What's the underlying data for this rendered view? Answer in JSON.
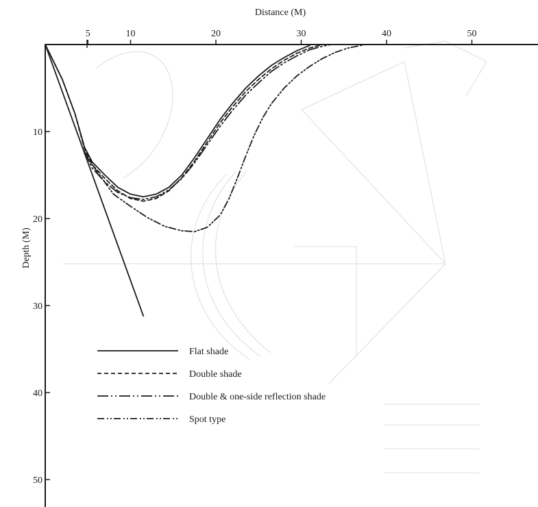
{
  "chart_data": {
    "type": "line",
    "title": "",
    "xlabel": "Distance (M)",
    "ylabel": "Depth (M)",
    "x_axis_position": "top",
    "y_axis_inverted": true,
    "xlim": [
      0,
      58
    ],
    "ylim": [
      0,
      55
    ],
    "xticks": [
      5,
      10,
      20,
      30,
      40,
      50
    ],
    "yticks": [
      10,
      20,
      30,
      40,
      50
    ],
    "grid": false,
    "legend_position": "bottom-left",
    "series": [
      {
        "name": "Flat shade",
        "style": "solid",
        "points": [
          [
            0,
            0
          ],
          [
            2,
            4
          ],
          [
            3.5,
            8
          ],
          [
            4.6,
            11.8
          ],
          [
            5.5,
            13.5
          ],
          [
            7,
            15
          ],
          [
            8.5,
            16.4
          ],
          [
            10,
            17.2
          ],
          [
            11.5,
            17.5
          ],
          [
            13,
            17.2
          ],
          [
            14.5,
            16.4
          ],
          [
            16,
            15
          ],
          [
            17.5,
            13
          ],
          [
            19,
            10.8
          ],
          [
            20.5,
            8.6
          ],
          [
            22,
            6.7
          ],
          [
            23.5,
            5
          ],
          [
            25,
            3.6
          ],
          [
            26.5,
            2.4
          ],
          [
            28,
            1.5
          ],
          [
            29.5,
            0.7
          ],
          [
            31,
            0.1
          ]
        ]
      },
      {
        "name": "Double shade",
        "style": "dashed",
        "points": [
          [
            0,
            0
          ],
          [
            2,
            4
          ],
          [
            3.5,
            8
          ],
          [
            4.6,
            12
          ],
          [
            5.5,
            13.8
          ],
          [
            7,
            15.4
          ],
          [
            8.5,
            16.8
          ],
          [
            10,
            17.7
          ],
          [
            11.5,
            18
          ],
          [
            13,
            17.7
          ],
          [
            14.5,
            16.8
          ],
          [
            16,
            15.3
          ],
          [
            17.5,
            13.4
          ],
          [
            19,
            11.2
          ],
          [
            20.5,
            9
          ],
          [
            22,
            7.1
          ],
          [
            23.5,
            5.4
          ],
          [
            25,
            4
          ],
          [
            26.5,
            2.8
          ],
          [
            28,
            1.8
          ],
          [
            29.5,
            1
          ],
          [
            31,
            0.4
          ],
          [
            32.5,
            0
          ]
        ]
      },
      {
        "name": "Double & one-side reflection shade",
        "style": "long-dash-dot-dot",
        "points": [
          [
            4.6,
            12.3
          ],
          [
            5.5,
            14.2
          ],
          [
            7,
            15.8
          ],
          [
            8.5,
            17
          ],
          [
            10,
            17.6
          ],
          [
            11.5,
            17.8
          ],
          [
            13,
            17.5
          ],
          [
            14.5,
            16.7
          ],
          [
            16,
            15.4
          ],
          [
            17.5,
            13.6
          ],
          [
            19,
            11.5
          ],
          [
            20.5,
            9.4
          ],
          [
            22,
            7.5
          ],
          [
            23.5,
            5.8
          ],
          [
            25,
            4.4
          ],
          [
            26.5,
            3.1
          ],
          [
            28,
            2.1
          ],
          [
            29.5,
            1.3
          ],
          [
            31,
            0.6
          ],
          [
            32.5,
            0.2
          ],
          [
            33.5,
            0
          ]
        ]
      },
      {
        "name": "Spot type",
        "style": "dash-dot-dot",
        "points": [
          [
            4.6,
            12.5
          ],
          [
            6,
            14.5
          ],
          [
            8,
            17.2
          ],
          [
            10,
            18.6
          ],
          [
            12,
            19.9
          ],
          [
            14,
            20.9
          ],
          [
            16,
            21.4
          ],
          [
            17.5,
            21.5
          ],
          [
            19,
            21
          ],
          [
            20.5,
            19.6
          ],
          [
            21.5,
            17.8
          ],
          [
            22.5,
            15.4
          ],
          [
            23.5,
            12.8
          ],
          [
            24.5,
            10.4
          ],
          [
            25.5,
            8.4
          ],
          [
            26.5,
            6.8
          ],
          [
            28,
            5
          ],
          [
            29.5,
            3.6
          ],
          [
            31,
            2.5
          ],
          [
            32.5,
            1.6
          ],
          [
            34,
            0.9
          ],
          [
            35.5,
            0.4
          ],
          [
            37.5,
            0
          ]
        ]
      },
      {
        "name": "",
        "style": "solid",
        "points": [
          [
            0,
            0
          ],
          [
            11.5,
            31.2
          ]
        ]
      }
    ]
  }
}
